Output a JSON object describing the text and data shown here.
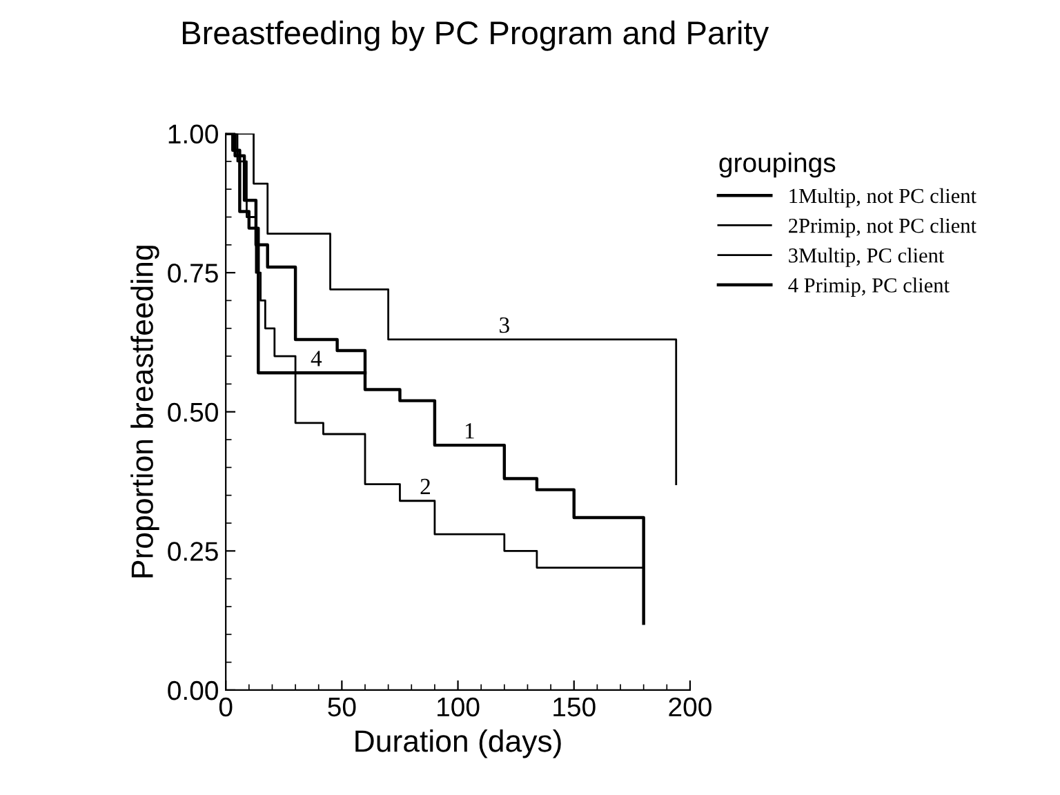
{
  "chart_data": {
    "type": "step",
    "title": "Breastfeeding by PC Program and Parity",
    "xlabel": "Duration (days)",
    "ylabel": "Proportion breastfeeding",
    "legend_title": "groupings",
    "legend": "top right",
    "xlim": [
      0,
      200
    ],
    "ylim": [
      0,
      1
    ],
    "xticks": [
      0,
      50,
      100,
      150,
      200
    ],
    "yticks": [
      {
        "value": 0,
        "label": "0.00"
      },
      {
        "value": 0.25,
        "label": "0.25"
      },
      {
        "value": 0.5,
        "label": "0.50"
      },
      {
        "value": 0.75,
        "label": "0.75"
      },
      {
        "value": 1,
        "label": "1.00"
      }
    ],
    "grid": false,
    "series": [
      {
        "name": "1Multip, not PC client",
        "color": "#000000",
        "x": [
          0,
          4,
          8,
          13,
          18,
          30,
          48,
          60,
          75,
          90,
          120,
          134,
          150,
          180,
          180
        ],
        "values": [
          1,
          0.96,
          0.88,
          0.8,
          0.76,
          0.63,
          0.61,
          0.54,
          0.52,
          0.44,
          0.38,
          0.36,
          0.31,
          0.31,
          0.12
        ]
      },
      {
        "name": "2Primip, not PC client",
        "color": "#000000",
        "x": [
          0,
          5,
          9,
          13,
          15,
          17,
          21,
          30,
          42,
          60,
          75,
          90,
          120,
          134,
          180
        ],
        "values": [
          1,
          0.95,
          0.85,
          0.75,
          0.7,
          0.65,
          0.6,
          0.48,
          0.46,
          0.37,
          0.34,
          0.28,
          0.25,
          0.22,
          0.22
        ]
      },
      {
        "name": "3Multip, PC client",
        "color": "#000000",
        "x": [
          0,
          12,
          18,
          45,
          70,
          194,
          194
        ],
        "values": [
          1,
          0.91,
          0.82,
          0.72,
          0.63,
          0.63,
          0.37
        ]
      },
      {
        "name": "4 Primip, PC client",
        "color": "#000000",
        "x": [
          0,
          3,
          6,
          10,
          14,
          60
        ],
        "values": [
          1,
          0.97,
          0.86,
          0.83,
          0.57,
          0.57
        ]
      }
    ],
    "annotations": [
      {
        "text": "1",
        "x": 105,
        "y": 0.44
      },
      {
        "text": "2",
        "x": 86,
        "y": 0.34
      },
      {
        "text": "3",
        "x": 120,
        "y": 0.63
      },
      {
        "text": "4",
        "x": 39,
        "y": 0.57
      }
    ]
  }
}
